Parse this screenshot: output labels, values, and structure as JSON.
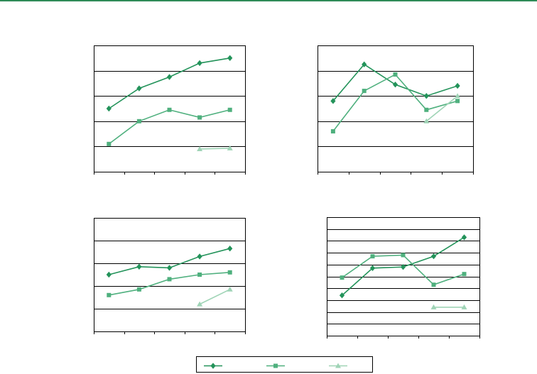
{
  "colors": {
    "series1": "#23935a",
    "series2": "#4fb07e",
    "series3": "#9fd4b6",
    "rule": "#2e8b57",
    "grid": "#000000"
  },
  "chart_data": [
    {
      "type": "line",
      "title": "",
      "xlabel": "",
      "ylabel": "",
      "x": [
        1,
        2,
        3,
        4,
        5
      ],
      "ylim": [
        0,
        5
      ],
      "grid": true,
      "series": [
        {
          "marker": "diamond",
          "values": [
            2.5,
            3.3,
            3.75,
            4.3,
            4.5
          ]
        },
        {
          "marker": "square",
          "values": [
            1.1,
            2.0,
            2.45,
            2.15,
            2.45
          ]
        },
        {
          "marker": "triangle",
          "values": [
            null,
            null,
            null,
            0.9,
            0.93
          ]
        }
      ]
    },
    {
      "type": "line",
      "title": "",
      "xlabel": "",
      "ylabel": "",
      "x": [
        1,
        2,
        3,
        4,
        5
      ],
      "ylim": [
        0,
        5
      ],
      "grid": true,
      "series": [
        {
          "marker": "diamond",
          "values": [
            2.8,
            4.25,
            3.45,
            3.0,
            3.4
          ]
        },
        {
          "marker": "square",
          "values": [
            1.6,
            3.2,
            3.85,
            2.45,
            2.8
          ]
        },
        {
          "marker": "triangle",
          "values": [
            null,
            null,
            null,
            2.0,
            3.0
          ]
        }
      ]
    },
    {
      "type": "line",
      "title": "",
      "xlabel": "",
      "ylabel": "",
      "x": [
        1,
        2,
        3,
        4,
        5
      ],
      "ylim": [
        0,
        5
      ],
      "grid": true,
      "series": [
        {
          "marker": "diamond",
          "values": [
            2.5,
            2.85,
            2.8,
            3.3,
            3.65
          ]
        },
        {
          "marker": "square",
          "values": [
            1.6,
            1.85,
            2.3,
            2.5,
            2.6
          ]
        },
        {
          "marker": "triangle",
          "values": [
            null,
            null,
            null,
            1.2,
            1.85
          ]
        }
      ]
    },
    {
      "type": "line",
      "title": "",
      "xlabel": "",
      "ylabel": "",
      "x": [
        1,
        2,
        3,
        4,
        5
      ],
      "ylim": [
        0,
        10
      ],
      "grid": true,
      "series": [
        {
          "marker": "diamond",
          "values": [
            3.4,
            5.7,
            5.8,
            6.7,
            8.3
          ]
        },
        {
          "marker": "square",
          "values": [
            4.9,
            6.7,
            6.8,
            4.3,
            5.2
          ]
        },
        {
          "marker": "triangle",
          "values": [
            null,
            null,
            null,
            2.4,
            2.4
          ]
        }
      ]
    }
  ],
  "legend": {
    "position": "bottom-center",
    "entries": [
      {
        "marker": "diamond",
        "label": ""
      },
      {
        "marker": "square",
        "label": ""
      },
      {
        "marker": "triangle",
        "label": ""
      }
    ]
  }
}
